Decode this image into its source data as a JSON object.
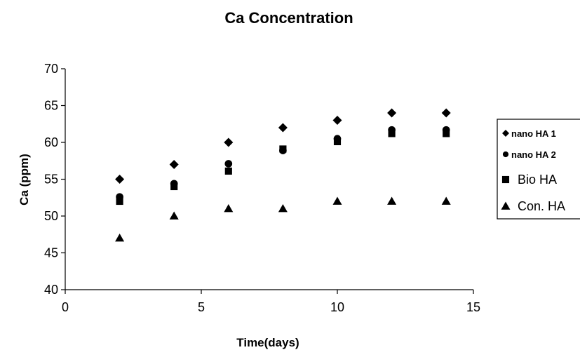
{
  "chart_data": {
    "type": "scatter",
    "title": "Ca Concentration",
    "xlabel": "Time(days)",
    "ylabel": "Ca (ppm)",
    "xlim": [
      0,
      15
    ],
    "ylim": [
      40,
      70
    ],
    "xticks": [
      0,
      5,
      10,
      15
    ],
    "yticks": [
      40,
      45,
      50,
      55,
      60,
      65,
      70
    ],
    "grid": false,
    "legend_position": "right",
    "x": [
      2,
      4,
      6,
      8,
      10,
      12,
      14
    ],
    "series": [
      {
        "name": "nano HA 1",
        "marker": "diamond",
        "color": "#000000",
        "values": [
          55,
          57,
          60,
          62,
          63,
          64,
          64
        ]
      },
      {
        "name": "nano HA 2",
        "marker": "circle",
        "color": "#000000",
        "values": [
          52.6,
          54.4,
          57.1,
          58.9,
          60.5,
          61.7,
          61.7
        ]
      },
      {
        "name": "Bio HA",
        "marker": "square",
        "color": "#000000",
        "values": [
          52,
          54,
          56.1,
          59.1,
          60.1,
          61.2,
          61.2
        ]
      },
      {
        "name": "Con. HA",
        "marker": "triangle",
        "color": "#000000",
        "values": [
          47,
          50,
          51,
          51,
          52,
          52,
          52
        ]
      }
    ]
  }
}
